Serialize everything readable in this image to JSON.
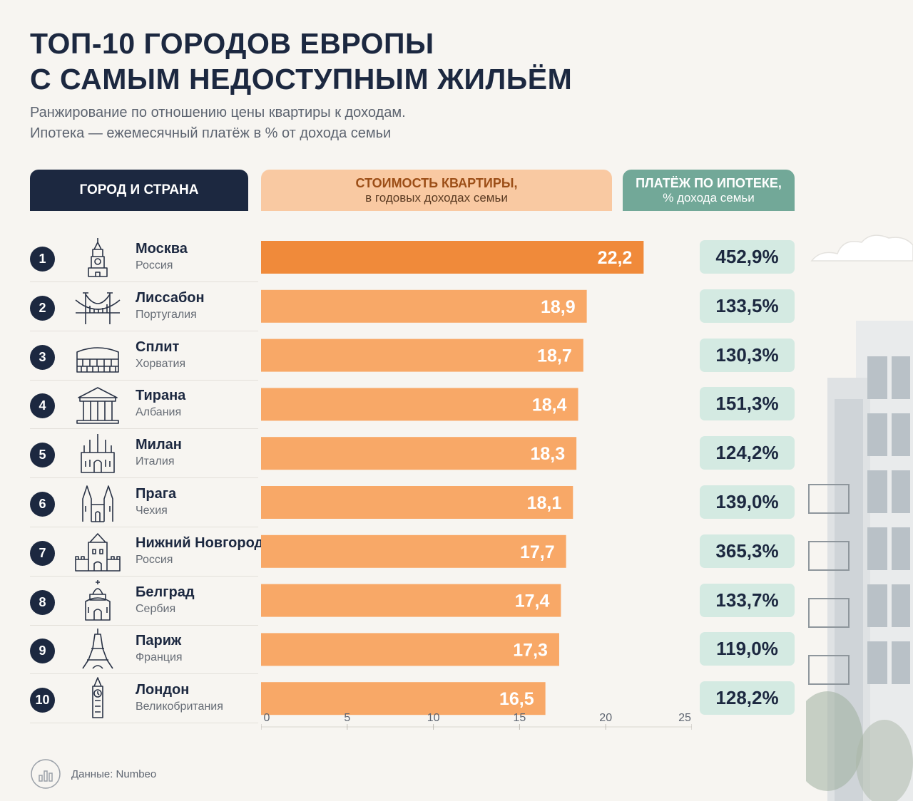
{
  "title_lines": [
    "ТОП-10 ГОРОДОВ ЕВРОПЫ",
    "С САМЫМ НЕДОСТУПНЫМ ЖИЛЬЁМ"
  ],
  "subtitle_lines": [
    "Ранжирование по отношению цены квартиры к доходам.",
    "Ипотека — ежемесячный платёж в % от дохода семьи"
  ],
  "headers": {
    "city": "ГОРОД И СТРАНА",
    "cost_line1": "СТОИМОСТЬ КВАРТИРЫ,",
    "cost_line2": "в годовых доходах семьи",
    "mort_line1": "ПЛАТЁЖ ПО ИПОТЕКЕ,",
    "mort_line2": "% дохода семьи"
  },
  "colors": {
    "navy": "#1c2840",
    "bar": "#f8a867",
    "bar_highlight": "#f08a3a",
    "mortgage_bg": "#d4eae2",
    "mortgage_header": "#72a898",
    "cost_header": "#f9c9a2"
  },
  "rows": [
    {
      "rank": "1",
      "city": "Москва",
      "country": "Россия",
      "icon": "kremlin-tower-icon",
      "value_label": "22,2",
      "mortgage": "452,9%"
    },
    {
      "rank": "2",
      "city": "Лиссабон",
      "country": "Португалия",
      "icon": "bridge-icon",
      "value_label": "18,9",
      "mortgage": "133,5%"
    },
    {
      "rank": "3",
      "city": "Сплит",
      "country": "Хорватия",
      "icon": "colosseum-icon",
      "value_label": "18,7",
      "mortgage": "130,3%"
    },
    {
      "rank": "4",
      "city": "Тирана",
      "country": "Албания",
      "icon": "temple-icon",
      "value_label": "18,4",
      "mortgage": "151,3%"
    },
    {
      "rank": "5",
      "city": "Милан",
      "country": "Италия",
      "icon": "cathedral-icon",
      "value_label": "18,3",
      "mortgage": "124,2%"
    },
    {
      "rank": "6",
      "city": "Прага",
      "country": "Чехия",
      "icon": "gothic-church-icon",
      "value_label": "18,1",
      "mortgage": "139,0%"
    },
    {
      "rank": "7",
      "city": "Нижний Новгород",
      "country": "Россия",
      "icon": "fortress-tower-icon",
      "value_label": "17,7",
      "mortgage": "365,3%"
    },
    {
      "rank": "8",
      "city": "Белград",
      "country": "Сербия",
      "icon": "church-dome-icon",
      "value_label": "17,4",
      "mortgage": "133,7%"
    },
    {
      "rank": "9",
      "city": "Париж",
      "country": "Франция",
      "icon": "eiffel-tower-icon",
      "value_label": "17,3",
      "mortgage": "119,0%"
    },
    {
      "rank": "10",
      "city": "Лондон",
      "country": "Великобритания",
      "icon": "big-ben-icon",
      "value_label": "16,5",
      "mortgage": "128,2%"
    }
  ],
  "chart_data": {
    "type": "bar",
    "orientation": "horizontal",
    "categories": [
      "Москва",
      "Лиссабон",
      "Сплит",
      "Тирана",
      "Милан",
      "Прага",
      "Нижний Новгород",
      "Белград",
      "Париж",
      "Лондон"
    ],
    "values": [
      22.2,
      18.9,
      18.7,
      18.4,
      18.3,
      18.1,
      17.7,
      17.4,
      17.3,
      16.5
    ],
    "xlim": [
      0,
      25
    ],
    "xticks": [
      0,
      5,
      10,
      15,
      20,
      25
    ],
    "grid": false,
    "highlight_index": 0
  },
  "footer": {
    "source": "Данные: Numbeo"
  }
}
